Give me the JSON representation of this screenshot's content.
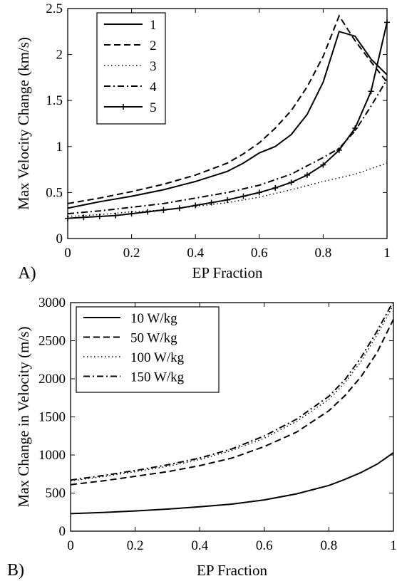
{
  "chart_data": [
    {
      "panel_label": "A)",
      "type": "line",
      "xlabel": "EP Fraction",
      "ylabel": "Max Velocity Change (km/s)",
      "xlim": [
        0,
        1
      ],
      "ylim": [
        0,
        2.5
      ],
      "xticks": [
        "0",
        "0.2",
        "0.4",
        "0.6",
        "0.8",
        "1"
      ],
      "yticks": [
        "0",
        "0.5",
        "1",
        "1.5",
        "2",
        "2.5"
      ],
      "legend_position": "top-left",
      "series": [
        {
          "name": "1",
          "style": "solid",
          "x": [
            0,
            0.1,
            0.2,
            0.3,
            0.4,
            0.5,
            0.55,
            0.6,
            0.65,
            0.7,
            0.75,
            0.8,
            0.85,
            0.9,
            0.95,
            1.0
          ],
          "y": [
            0.33,
            0.4,
            0.46,
            0.53,
            0.62,
            0.73,
            0.82,
            0.93,
            1.0,
            1.13,
            1.35,
            1.7,
            2.25,
            2.2,
            1.95,
            1.78
          ]
        },
        {
          "name": "2",
          "style": "dashed",
          "x": [
            0,
            0.1,
            0.2,
            0.3,
            0.4,
            0.5,
            0.55,
            0.6,
            0.65,
            0.7,
            0.75,
            0.8,
            0.85,
            0.9,
            0.95,
            1.0
          ],
          "y": [
            0.38,
            0.44,
            0.51,
            0.59,
            0.69,
            0.82,
            0.92,
            1.04,
            1.2,
            1.39,
            1.65,
            1.98,
            2.42,
            2.15,
            1.92,
            1.7
          ]
        },
        {
          "name": "3",
          "style": "dotted",
          "x": [
            0,
            0.1,
            0.2,
            0.3,
            0.4,
            0.5,
            0.6,
            0.7,
            0.8,
            0.9,
            1.0
          ],
          "y": [
            0.24,
            0.26,
            0.29,
            0.31,
            0.35,
            0.39,
            0.45,
            0.53,
            0.62,
            0.7,
            0.82
          ]
        },
        {
          "name": "4",
          "style": "dashdot",
          "x": [
            0,
            0.1,
            0.2,
            0.3,
            0.4,
            0.5,
            0.6,
            0.7,
            0.75,
            0.8,
            0.85,
            0.9,
            0.95,
            1.0
          ],
          "y": [
            0.27,
            0.3,
            0.34,
            0.38,
            0.44,
            0.5,
            0.58,
            0.7,
            0.79,
            0.88,
            0.98,
            1.17,
            1.44,
            1.73
          ]
        },
        {
          "name": "5",
          "style": "solid-plus",
          "x": [
            0,
            0.05,
            0.1,
            0.15,
            0.2,
            0.25,
            0.3,
            0.35,
            0.4,
            0.45,
            0.5,
            0.55,
            0.6,
            0.65,
            0.7,
            0.75,
            0.8,
            0.85,
            0.9,
            0.95,
            1.0
          ],
          "y": [
            0.22,
            0.23,
            0.24,
            0.25,
            0.27,
            0.29,
            0.31,
            0.33,
            0.36,
            0.39,
            0.42,
            0.46,
            0.5,
            0.55,
            0.61,
            0.69,
            0.8,
            0.96,
            1.2,
            1.6,
            2.35
          ]
        }
      ]
    },
    {
      "panel_label": "B)",
      "type": "line",
      "xlabel": "EP Fraction",
      "ylabel": "Max Change in Velocity (m/s)",
      "xlim": [
        0,
        1
      ],
      "ylim": [
        0,
        3000
      ],
      "xticks": [
        "0",
        "0.2",
        "0.4",
        "0.6",
        "0.8",
        "1"
      ],
      "yticks": [
        "0",
        "500",
        "1000",
        "1500",
        "2000",
        "2500",
        "3000"
      ],
      "legend_position": "top-left",
      "series": [
        {
          "name": "10 W/kg",
          "style": "solid",
          "x": [
            0,
            0.1,
            0.2,
            0.3,
            0.4,
            0.5,
            0.6,
            0.7,
            0.8,
            0.85,
            0.9,
            0.95,
            1.0
          ],
          "y": [
            230,
            245,
            265,
            290,
            320,
            355,
            410,
            490,
            600,
            680,
            770,
            880,
            1030
          ]
        },
        {
          "name": "50 W/kg",
          "style": "dashed",
          "x": [
            0,
            0.1,
            0.2,
            0.3,
            0.4,
            0.5,
            0.6,
            0.7,
            0.8,
            0.85,
            0.9,
            0.95,
            1.0
          ],
          "y": [
            610,
            660,
            720,
            780,
            860,
            960,
            1110,
            1300,
            1580,
            1780,
            2030,
            2350,
            2780
          ]
        },
        {
          "name": "100 W/kg",
          "style": "dotted",
          "x": [
            0,
            0.1,
            0.2,
            0.3,
            0.4,
            0.5,
            0.6,
            0.7,
            0.8,
            0.85,
            0.9,
            0.95,
            1.0
          ],
          "y": [
            660,
            715,
            780,
            850,
            940,
            1060,
            1220,
            1440,
            1730,
            1950,
            2230,
            2580,
            2970
          ]
        },
        {
          "name": "150 W/kg",
          "style": "dashdot",
          "x": [
            0,
            0.1,
            0.2,
            0.3,
            0.4,
            0.5,
            0.6,
            0.7,
            0.8,
            0.85,
            0.9,
            0.95,
            1.0
          ],
          "y": [
            670,
            730,
            795,
            870,
            960,
            1080,
            1250,
            1470,
            1770,
            1990,
            2280,
            2630,
            3020
          ]
        }
      ]
    }
  ]
}
